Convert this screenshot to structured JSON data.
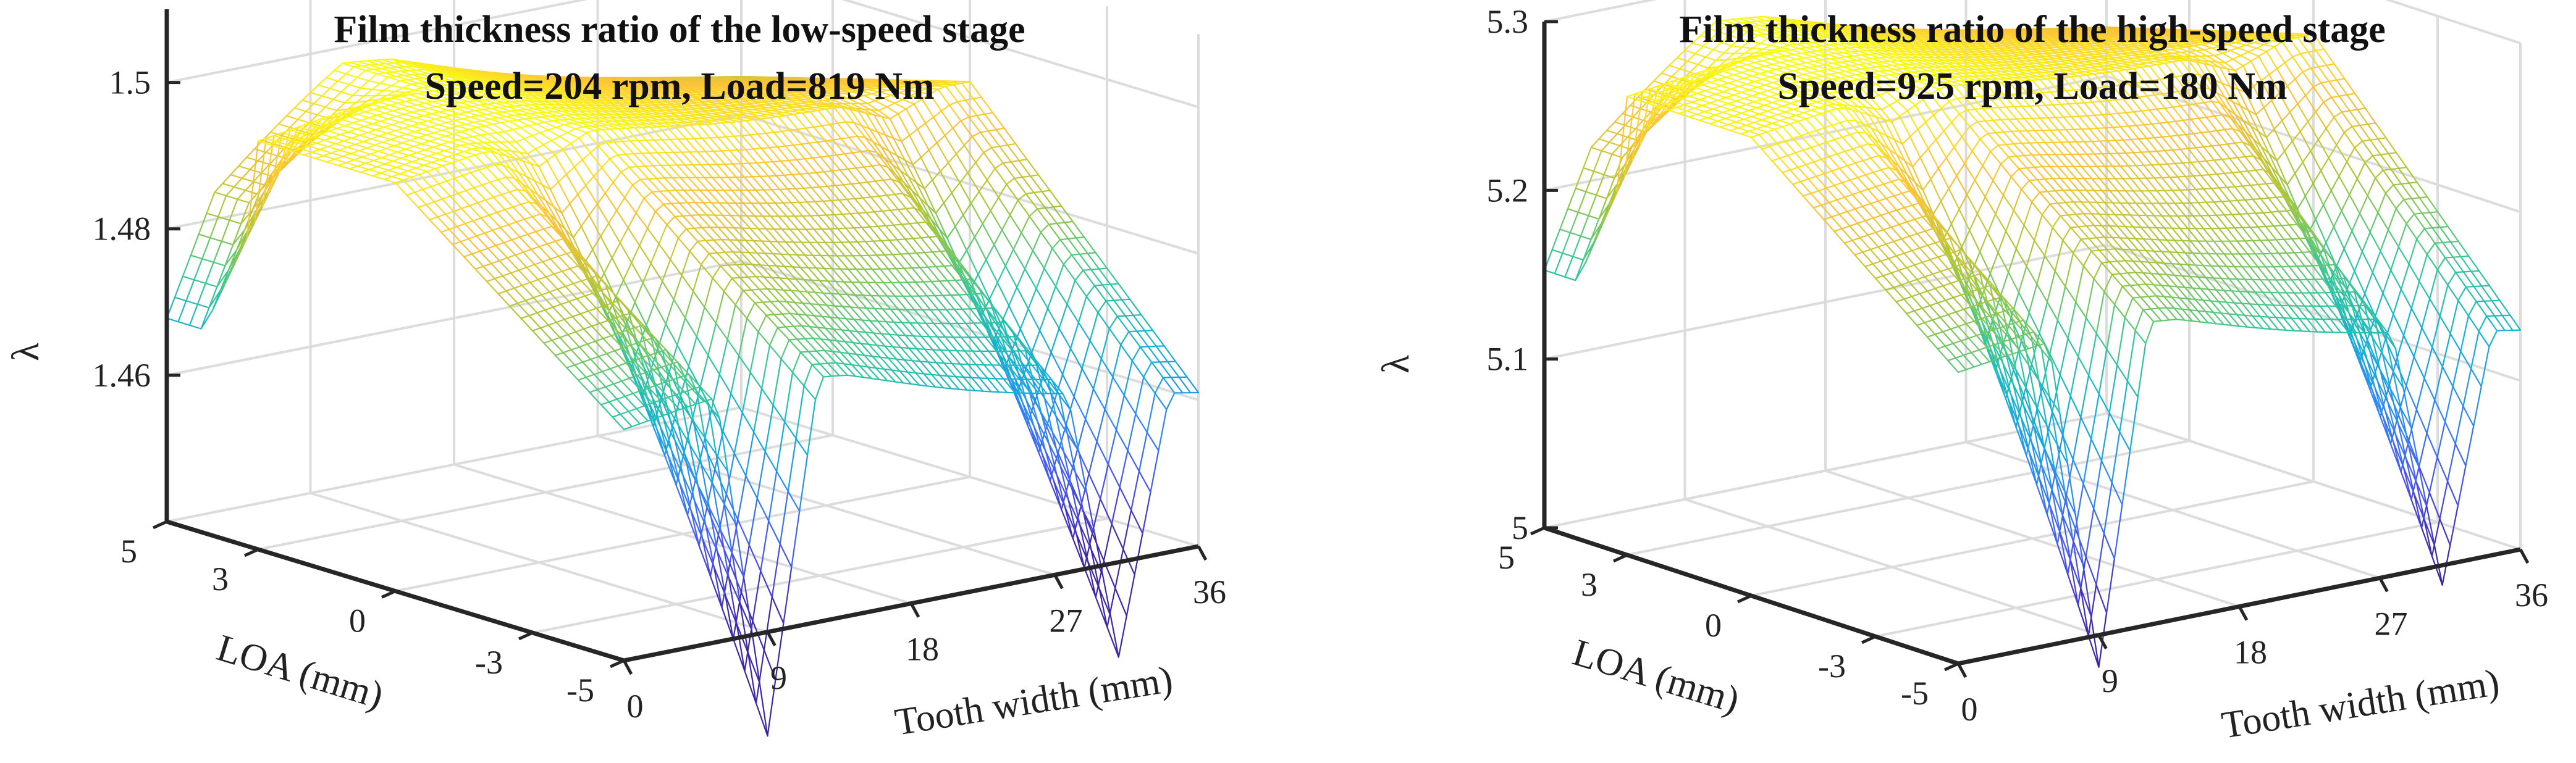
{
  "chart_data": [
    {
      "type": "surface",
      "title": [
        "Film thickness ratio of the low-speed stage",
        "Speed=204 rpm, Load=819 Nm"
      ],
      "xlabel": "Tooth width (mm)",
      "ylabel": "LOA (mm)",
      "zlabel": "λ",
      "xticks": [
        "0",
        "9",
        "18",
        "27",
        "36"
      ],
      "yticks": [
        "5",
        "3",
        "0",
        "-3",
        "-5"
      ],
      "zticks": [
        "1.46",
        "1.48",
        "1.5"
      ],
      "xlim": [
        0,
        36
      ],
      "ylim": [
        -5,
        5
      ],
      "zlim": [
        1.44,
        1.51
      ],
      "colormap": "parula",
      "grid": true,
      "surface": {
        "base": 1.494,
        "ridge_x": 9,
        "ridge_rise": 0.004,
        "notches": [
          {
            "x": 9,
            "depth": 0.048
          },
          {
            "x": 31,
            "depth": 0.036
          }
        ],
        "loa_drop_per_mm": 0.0022,
        "upper_block": {
          "x_from": 0,
          "x_to": 11,
          "loa_from": 3,
          "depth": 0.02
        }
      }
    },
    {
      "type": "surface",
      "title": [
        "Film thickness ratio of the high-speed stage",
        "Speed=925 rpm, Load=180 Nm"
      ],
      "xlabel": "Tooth width (mm)",
      "ylabel": "LOA (mm)",
      "zlabel": "λ",
      "xticks": [
        "0",
        "9",
        "18",
        "27",
        "36"
      ],
      "yticks": [
        "5",
        "3",
        "0",
        "-3",
        "-5"
      ],
      "zticks": [
        "5",
        "5.1",
        "5.2",
        "5.3"
      ],
      "xlim": [
        0,
        36
      ],
      "ylim": [
        -5,
        5
      ],
      "zlim": [
        5.0,
        5.3
      ],
      "colormap": "parula",
      "grid": true,
      "surface": {
        "base": 5.265,
        "ridge_x": 9,
        "ridge_rise": 0.015,
        "notches": [
          {
            "x": 9,
            "depth": 0.2
          },
          {
            "x": 31,
            "depth": 0.15
          }
        ],
        "loa_drop_per_mm": 0.009,
        "upper_block": {
          "x_from": 0,
          "x_to": 11,
          "loa_from": 3,
          "depth": 0.085
        }
      }
    }
  ]
}
